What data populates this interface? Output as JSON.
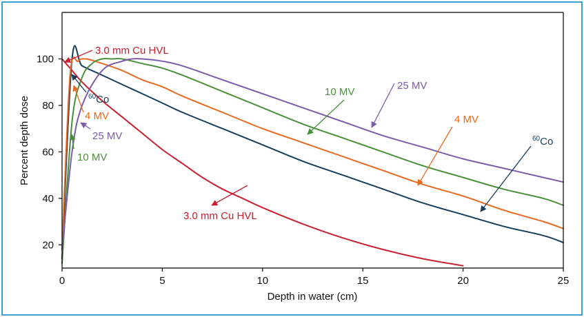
{
  "frame_color": "#3b9fd3",
  "chart_data": {
    "type": "line",
    "title": "",
    "xlabel": "Depth in water (cm)",
    "ylabel": "Percent depth dose",
    "xlim": [
      0,
      25
    ],
    "ylim": [
      10,
      120
    ],
    "xticks": [
      0,
      5,
      10,
      15,
      20,
      25
    ],
    "yticks": [
      20,
      40,
      60,
      80,
      100
    ],
    "grid": false,
    "legend": "none (labels placed beside curves with arrows)",
    "series": [
      {
        "name": "3.0 mm Cu HVL",
        "color": "#c8202e",
        "x": [
          0,
          0.5,
          1,
          2,
          3,
          4,
          5,
          6,
          7,
          8,
          9,
          10,
          12,
          14,
          16,
          18,
          20
        ],
        "y": [
          100,
          95,
          90,
          82,
          75,
          68,
          61,
          55,
          49,
          44,
          40,
          36,
          29,
          23,
          18,
          14,
          11
        ]
      },
      {
        "name": "60Co",
        "color": "#153d5c",
        "x": [
          0,
          0.5,
          1,
          2,
          3,
          4,
          5,
          6,
          8,
          10,
          12,
          14,
          16,
          18,
          20,
          22,
          24,
          25
        ],
        "y": [
          14,
          100,
          97,
          93,
          89,
          85,
          81,
          77,
          70,
          63,
          56,
          50,
          44,
          38,
          33,
          28,
          24,
          21
        ]
      },
      {
        "name": "4 MV",
        "color": "#e8691f",
        "x": [
          0,
          0.4,
          0.8,
          1.2,
          2,
          3,
          4,
          5,
          6,
          8,
          10,
          12,
          14,
          16,
          18,
          20,
          22,
          24,
          25
        ],
        "y": [
          18,
          93,
          99,
          100,
          98,
          95,
          91,
          88,
          84,
          77,
          70,
          64,
          58,
          52,
          46,
          41,
          35,
          30,
          27
        ]
      },
      {
        "name": "10 MV",
        "color": "#4b8f3a",
        "x": [
          0,
          0.5,
          1,
          1.5,
          2,
          2.5,
          3,
          4,
          5,
          6,
          8,
          10,
          12,
          14,
          16,
          18,
          20,
          22,
          24,
          25
        ],
        "y": [
          12,
          73,
          92,
          98,
          100,
          100,
          100,
          98,
          96,
          93,
          86,
          79,
          72,
          66,
          60,
          54,
          49,
          44,
          40,
          37
        ]
      },
      {
        "name": "25 MV",
        "color": "#7a5ca8",
        "x": [
          0,
          0.5,
          1,
          2,
          3,
          3.5,
          4,
          5,
          6,
          8,
          10,
          12,
          14,
          16,
          18,
          20,
          22,
          24,
          25
        ],
        "y": [
          18,
          60,
          80,
          95,
          99,
          100,
          100,
          99,
          97,
          91,
          85,
          79,
          73,
          67,
          62,
          57,
          53,
          49,
          47
        ]
      }
    ],
    "annotations": [
      {
        "text": "3.0 mm Cu HVL",
        "color": "#c8202e"
      },
      {
        "text": "3.0 mm Cu HVL",
        "color": "#c8202e"
      },
      {
        "text_base": "Co",
        "superscript": "60",
        "color": "#153d5c"
      },
      {
        "text_base": "Co",
        "superscript": "60",
        "color": "#153d5c"
      },
      {
        "text": "4 MV",
        "color": "#e8691f"
      },
      {
        "text": "4 MV",
        "color": "#e8691f"
      },
      {
        "text": "25 MV",
        "color": "#7a5ca8"
      },
      {
        "text": "25 MV",
        "color": "#7a5ca8"
      },
      {
        "text": "10 MV",
        "color": "#4b8f3a"
      },
      {
        "text": "10 MV",
        "color": "#4b8f3a"
      }
    ]
  }
}
